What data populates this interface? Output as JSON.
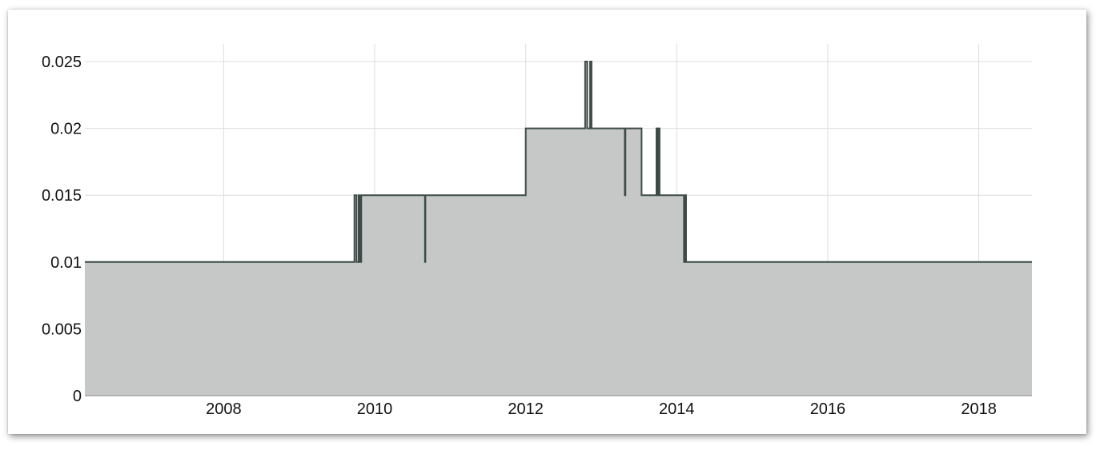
{
  "chart_data": {
    "type": "area",
    "step": true,
    "title": "",
    "xlabel": "",
    "ylabel": "",
    "xlim": [
      "2006-03-01",
      "2018-09-15"
    ],
    "ylim": [
      0,
      0.025
    ],
    "grid": true,
    "legend": "none",
    "x_ticks": [
      "2008",
      "2010",
      "2012",
      "2014",
      "2016",
      "2018"
    ],
    "y_ticks": [
      "0",
      "0.005",
      "0.01",
      "0.015",
      "0.02",
      "0.025"
    ],
    "colors": {
      "fill": "#c5c8c6",
      "line": "#3d4a48",
      "grid": "#dddddd",
      "axis": "#888888"
    },
    "series": [
      {
        "x": [
          "2006-03-01",
          "2009-09-25",
          "2009-10-05",
          "2009-10-15",
          "2009-10-22",
          "2009-10-28",
          "2009-11-05",
          "2010-09-01",
          "2010-09-03",
          "2012-01-01",
          "2012-10-15",
          "2012-10-25",
          "2012-11-08",
          "2012-11-15",
          "2013-04-25",
          "2013-04-28",
          "2013-07-15",
          "2013-09-25",
          "2013-10-02",
          "2013-10-05",
          "2013-10-10",
          "2014-02-05",
          "2014-02-10",
          "2014-02-15",
          "2018-09-15"
        ],
        "y": [
          0.01,
          0.015,
          0.01,
          0.015,
          0.01,
          0.015,
          0.015,
          0.01,
          0.015,
          0.02,
          0.025,
          0.02,
          0.025,
          0.02,
          0.015,
          0.02,
          0.015,
          0.02,
          0.015,
          0.02,
          0.015,
          0.01,
          0.015,
          0.01,
          0.01
        ]
      }
    ]
  }
}
